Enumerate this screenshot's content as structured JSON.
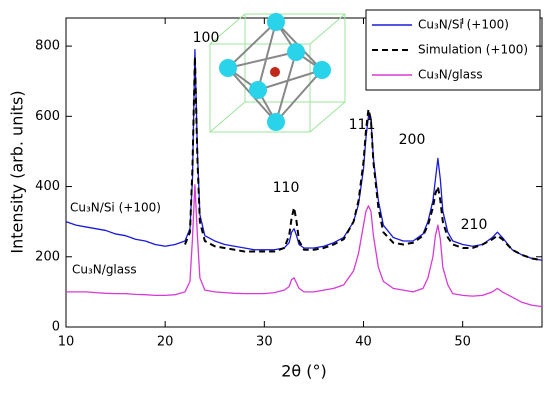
{
  "chart_data": {
    "type": "line",
    "x_label": "2θ (°)",
    "y_label": "Intensity (arb. units)",
    "xlim": [
      10,
      58
    ],
    "ylim": [
      0,
      880
    ],
    "xticks": [
      10,
      20,
      30,
      40,
      50
    ],
    "yticks": [
      0,
      200,
      400,
      600,
      800
    ],
    "legend": "upper right",
    "x": [
      10,
      11,
      12,
      13,
      14,
      15,
      16,
      17,
      18,
      19,
      20,
      21,
      22,
      22.5,
      22.75,
      23,
      23.25,
      23.5,
      24,
      25,
      26,
      27,
      28,
      29,
      30,
      31,
      32,
      32.5,
      32.75,
      33,
      33.25,
      33.5,
      34,
      35,
      36,
      37,
      38,
      39,
      39.5,
      40,
      40.25,
      40.5,
      40.75,
      41,
      41.5,
      42,
      43,
      44,
      45,
      46,
      46.5,
      47,
      47.25,
      47.5,
      47.75,
      48,
      48.5,
      49,
      50,
      51,
      52,
      53,
      53.5,
      54,
      55,
      56,
      57,
      58
    ],
    "series": [
      {
        "name": "Cu₃N/Si (+100)",
        "color": "#1a1adb",
        "dash": false,
        "values": [
          300,
          290,
          285,
          280,
          275,
          265,
          260,
          250,
          245,
          235,
          230,
          235,
          245,
          280,
          420,
          790,
          500,
          320,
          260,
          245,
          235,
          230,
          225,
          220,
          220,
          220,
          225,
          240,
          270,
          280,
          260,
          235,
          225,
          225,
          230,
          240,
          255,
          300,
          350,
          450,
          540,
          600,
          590,
          480,
          360,
          290,
          255,
          245,
          245,
          265,
          300,
          360,
          420,
          480,
          420,
          330,
          270,
          245,
          235,
          230,
          235,
          255,
          270,
          255,
          220,
          205,
          195,
          190
        ]
      },
      {
        "name": "Simulation (+100)",
        "color": "#000000",
        "dash": true,
        "values": [
          null,
          null,
          null,
          null,
          null,
          null,
          null,
          null,
          null,
          null,
          null,
          null,
          235,
          270,
          450,
          770,
          480,
          300,
          245,
          230,
          225,
          220,
          215,
          215,
          215,
          215,
          225,
          260,
          310,
          340,
          300,
          245,
          220,
          220,
          225,
          235,
          250,
          300,
          360,
          470,
          560,
          620,
          590,
          470,
          340,
          270,
          240,
          235,
          240,
          260,
          290,
          340,
          380,
          400,
          360,
          300,
          255,
          235,
          225,
          225,
          235,
          250,
          260,
          250,
          220,
          205,
          195,
          190
        ]
      },
      {
        "name": "Cu₃N/glass",
        "color": "#d63bd6",
        "dash": false,
        "values": [
          100,
          100,
          100,
          98,
          96,
          95,
          95,
          93,
          92,
          90,
          90,
          92,
          100,
          130,
          250,
          405,
          260,
          140,
          105,
          100,
          98,
          96,
          95,
          95,
          95,
          98,
          105,
          115,
          135,
          140,
          125,
          110,
          100,
          100,
          105,
          110,
          120,
          160,
          210,
          290,
          330,
          345,
          330,
          260,
          170,
          130,
          110,
          105,
          100,
          110,
          140,
          200,
          260,
          290,
          250,
          170,
          120,
          95,
          90,
          88,
          90,
          100,
          110,
          100,
          85,
          70,
          62,
          58
        ]
      }
    ],
    "annotations": [
      "100",
      "110",
      "111",
      "200",
      "210",
      "Cu₃N/Si (+100)",
      "Cu₃N/glass"
    ]
  }
}
